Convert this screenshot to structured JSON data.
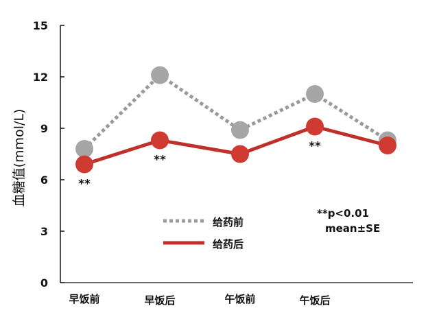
{
  "chart_data": {
    "type": "line",
    "categories": [
      "早饭前",
      "早饭后",
      "午饭前",
      "午饭后",
      ""
    ],
    "series": [
      {
        "name": "给药前",
        "values": [
          7.8,
          12.1,
          8.9,
          11.0,
          8.3
        ],
        "color": "#9a9a9a",
        "marker_color": "#a6a6a6",
        "style": "dotted"
      },
      {
        "name": "给药后",
        "values": [
          6.9,
          8.3,
          7.5,
          9.1,
          8.0
        ],
        "color": "#c0302a",
        "marker_color": "#cf3a33",
        "style": "solid"
      }
    ],
    "ylabel": "血糖值(mmol/L)",
    "xlabel": "",
    "ylim": [
      0,
      15
    ],
    "yticks": [
      "0",
      "3",
      "6",
      "9",
      "12",
      "15"
    ],
    "significance": [
      {
        "index": 0,
        "label": "**"
      },
      {
        "index": 1,
        "label": "**"
      },
      {
        "index": 3,
        "label": "**"
      }
    ],
    "annotation": [
      "**p<0.01",
      "mean±SE"
    ],
    "legend_position": "center-bottom",
    "grid": false
  }
}
